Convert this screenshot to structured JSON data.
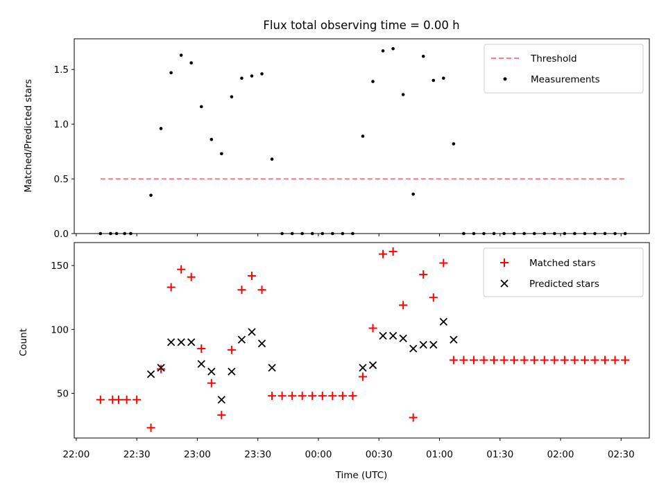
{
  "title": "Flux total observing time = 0.00 h",
  "chart_data": [
    {
      "type": "scatter",
      "panel": "top",
      "title": "Flux total observing time = 0.00 h",
      "ylabel": "Matched/Predicted stars",
      "xlabel": "",
      "xlim": [
        "21:59",
        "02:44"
      ],
      "ylim": [
        0,
        1.78
      ],
      "yticks": [
        0.0,
        0.5,
        1.0,
        1.5
      ],
      "ytick_labels": [
        "0.0",
        "0.5",
        "1.0",
        "1.5"
      ],
      "grid": false,
      "legend_position": "top-right",
      "threshold": {
        "name": "Threshold",
        "value": 0.5,
        "x_start": "22:12",
        "x_end": "02:32",
        "color": "#ff8080",
        "style": "dashed"
      },
      "series": [
        {
          "name": "Measurements",
          "color": "#000000",
          "marker": "dot",
          "points": [
            [
              "22:12",
              0
            ],
            [
              "22:17",
              0
            ],
            [
              "22:20",
              0
            ],
            [
              "22:24",
              0
            ],
            [
              "22:27",
              0
            ],
            [
              "22:37",
              0.35
            ],
            [
              "22:42",
              0.96
            ],
            [
              "22:47",
              1.47
            ],
            [
              "22:52",
              1.63
            ],
            [
              "22:57",
              1.56
            ],
            [
              "23:02",
              1.16
            ],
            [
              "23:07",
              0.86
            ],
            [
              "23:12",
              0.73
            ],
            [
              "23:17",
              1.25
            ],
            [
              "23:22",
              1.42
            ],
            [
              "23:27",
              1.44
            ],
            [
              "23:32",
              1.46
            ],
            [
              "23:37",
              0.68
            ],
            [
              "23:42",
              0
            ],
            [
              "23:47",
              0
            ],
            [
              "23:52",
              0
            ],
            [
              "23:57",
              0
            ],
            [
              "00:02",
              0
            ],
            [
              "00:07",
              0
            ],
            [
              "00:12",
              0
            ],
            [
              "00:17",
              0
            ],
            [
              "00:22",
              0.89
            ],
            [
              "00:27",
              1.39
            ],
            [
              "00:32",
              1.67
            ],
            [
              "00:37",
              1.69
            ],
            [
              "00:42",
              1.27
            ],
            [
              "00:47",
              0.36
            ],
            [
              "00:52",
              1.62
            ],
            [
              "00:57",
              1.4
            ],
            [
              "01:02",
              1.42
            ],
            [
              "01:07",
              0.82
            ],
            [
              "01:12",
              0
            ],
            [
              "01:17",
              0
            ],
            [
              "01:22",
              0
            ],
            [
              "01:27",
              0
            ],
            [
              "01:32",
              0
            ],
            [
              "01:37",
              0
            ],
            [
              "01:42",
              0
            ],
            [
              "01:47",
              0
            ],
            [
              "01:52",
              0
            ],
            [
              "01:57",
              0
            ],
            [
              "02:02",
              0
            ],
            [
              "02:07",
              0
            ],
            [
              "02:12",
              0
            ],
            [
              "02:17",
              0
            ],
            [
              "02:22",
              0
            ],
            [
              "02:27",
              0
            ],
            [
              "02:32",
              0
            ]
          ]
        }
      ],
      "legend": [
        {
          "label": "Threshold",
          "kind": "dashed-line",
          "color": "#ff8080"
        },
        {
          "label": "Measurements",
          "kind": "dot",
          "color": "#000000"
        }
      ]
    },
    {
      "type": "scatter",
      "panel": "bottom",
      "title": "",
      "xlabel": "Time (UTC)",
      "ylabel": "Count",
      "xlim": [
        "21:59",
        "02:44"
      ],
      "ylim": [
        15,
        168
      ],
      "yticks": [
        50,
        100,
        150
      ],
      "ytick_labels": [
        "50",
        "100",
        "150"
      ],
      "xticks": [
        "22:00",
        "22:30",
        "23:00",
        "23:30",
        "00:00",
        "00:30",
        "01:00",
        "01:30",
        "02:00",
        "02:30"
      ],
      "xtick_labels": [
        "22:00",
        "22:30",
        "23:00",
        "23:30",
        "00:00",
        "00:30",
        "01:00",
        "01:30",
        "02:00",
        "02:30"
      ],
      "grid": false,
      "legend_position": "top-right",
      "series": [
        {
          "name": "Matched stars",
          "color": "#ff0000",
          "marker": "plus",
          "points": [
            [
              "22:12",
              45
            ],
            [
              "22:18",
              45
            ],
            [
              "22:21",
              45
            ],
            [
              "22:25",
              45
            ],
            [
              "22:30",
              45
            ],
            [
              "22:37",
              23
            ],
            [
              "22:42",
              69
            ],
            [
              "22:47",
              133
            ],
            [
              "22:52",
              147
            ],
            [
              "22:57",
              141
            ],
            [
              "23:02",
              85
            ],
            [
              "23:07",
              58
            ],
            [
              "23:12",
              33
            ],
            [
              "23:17",
              84
            ],
            [
              "23:22",
              131
            ],
            [
              "23:27",
              142
            ],
            [
              "23:32",
              131
            ],
            [
              "23:37",
              48
            ],
            [
              "23:42",
              48
            ],
            [
              "23:47",
              48
            ],
            [
              "23:52",
              48
            ],
            [
              "23:57",
              48
            ],
            [
              "00:02",
              48
            ],
            [
              "00:07",
              48
            ],
            [
              "00:12",
              48
            ],
            [
              "00:17",
              48
            ],
            [
              "00:22",
              63
            ],
            [
              "00:27",
              101
            ],
            [
              "00:32",
              159
            ],
            [
              "00:37",
              161
            ],
            [
              "00:42",
              119
            ],
            [
              "00:47",
              31
            ],
            [
              "00:52",
              143
            ],
            [
              "00:57",
              125
            ],
            [
              "01:02",
              152
            ],
            [
              "01:07",
              76
            ],
            [
              "01:12",
              76
            ],
            [
              "01:17",
              76
            ],
            [
              "01:22",
              76
            ],
            [
              "01:27",
              76
            ],
            [
              "01:32",
              76
            ],
            [
              "01:37",
              76
            ],
            [
              "01:42",
              76
            ],
            [
              "01:47",
              76
            ],
            [
              "01:52",
              76
            ],
            [
              "01:57",
              76
            ],
            [
              "02:02",
              76
            ],
            [
              "02:07",
              76
            ],
            [
              "02:12",
              76
            ],
            [
              "02:17",
              76
            ],
            [
              "02:22",
              76
            ],
            [
              "02:27",
              76
            ],
            [
              "02:32",
              76
            ]
          ]
        },
        {
          "name": "Predicted stars",
          "color": "#000000",
          "marker": "x",
          "points": [
            [
              "22:37",
              65
            ],
            [
              "22:42",
              70
            ],
            [
              "22:47",
              90
            ],
            [
              "22:52",
              90
            ],
            [
              "22:57",
              90
            ],
            [
              "23:02",
              73
            ],
            [
              "23:07",
              67
            ],
            [
              "23:12",
              45
            ],
            [
              "23:17",
              67
            ],
            [
              "23:22",
              92
            ],
            [
              "23:27",
              98
            ],
            [
              "23:32",
              89
            ],
            [
              "23:37",
              70
            ],
            [
              "00:22",
              70
            ],
            [
              "00:27",
              72
            ],
            [
              "00:32",
              95
            ],
            [
              "00:37",
              95
            ],
            [
              "00:42",
              93
            ],
            [
              "00:47",
              85
            ],
            [
              "00:52",
              88
            ],
            [
              "00:57",
              88
            ],
            [
              "01:02",
              106
            ],
            [
              "01:07",
              92
            ]
          ]
        }
      ],
      "legend": [
        {
          "label": "Matched stars",
          "kind": "plus",
          "color": "#ff0000"
        },
        {
          "label": "Predicted stars",
          "kind": "x",
          "color": "#000000"
        }
      ]
    }
  ]
}
